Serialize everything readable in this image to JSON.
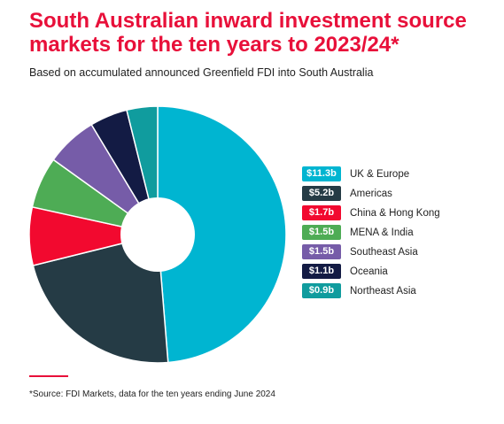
{
  "header": {
    "title": "South Australian inward investment source markets for the ten years to 2023/24*",
    "subtitle": "Based on accumulated announced Greenfield FDI into South Australia"
  },
  "chart_data": {
    "type": "pie",
    "variant": "donut",
    "title": "South Australian inward investment source markets for the ten years to 2023/24*",
    "subtitle": "Based on accumulated announced Greenfield FDI into South Australia",
    "unit": "$b",
    "legend_position": "right",
    "slices": [
      {
        "label": "UK & Europe",
        "value": 11.3,
        "display": "$11.3b",
        "color": "#00b5d1"
      },
      {
        "label": "Americas",
        "value": 5.2,
        "display": "$5.2b",
        "color": "#253b45"
      },
      {
        "label": "China & Hong Kong",
        "value": 1.7,
        "display": "$1.7b",
        "color": "#f2092f"
      },
      {
        "label": "MENA & India",
        "value": 1.5,
        "display": "$1.5b",
        "color": "#4eac55"
      },
      {
        "label": "Southeast Asia",
        "value": 1.5,
        "display": "$1.5b",
        "color": "#765ca8"
      },
      {
        "label": "Oceania",
        "value": 1.1,
        "display": "$1.1b",
        "color": "#131b44"
      },
      {
        "label": "Northeast Asia",
        "value": 0.9,
        "display": "$0.9b",
        "color": "#109c9e"
      }
    ]
  },
  "footer": {
    "accent_color": "#e8103a",
    "note": "*Source: FDI Markets, data for the ten years ending June 2024"
  }
}
